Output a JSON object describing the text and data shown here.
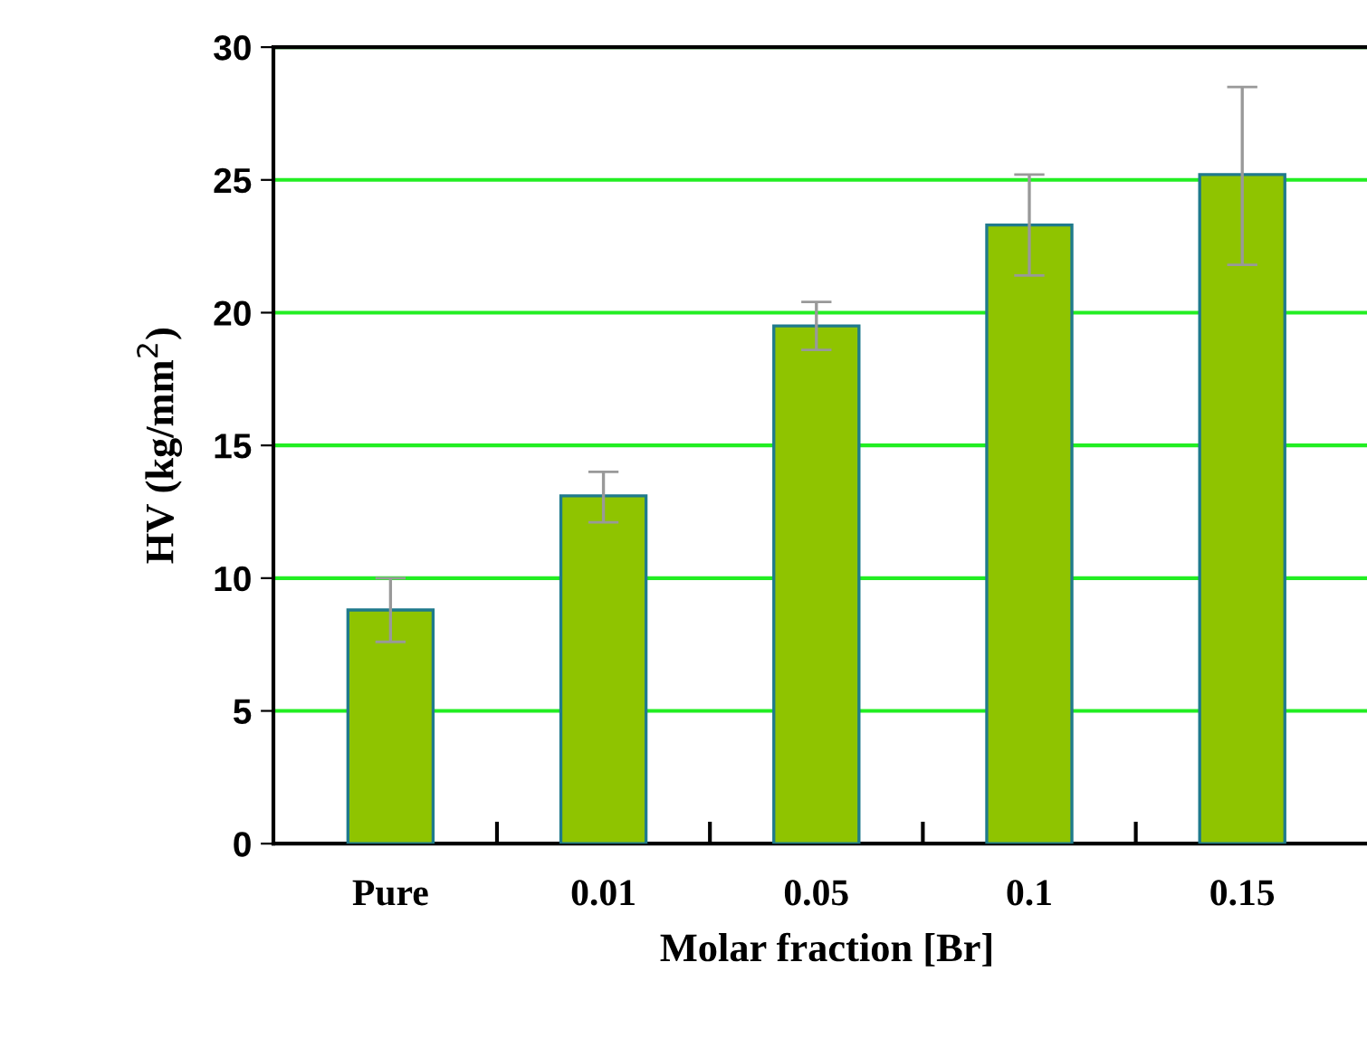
{
  "chart_data": {
    "type": "bar",
    "xlabel": "Molar fraction [Br]",
    "ylabel": "HV (kg/mm$^{2}$)",
    "categories": [
      "Pure",
      "0.01",
      "0.05",
      "0.1",
      "0.15"
    ],
    "values": [
      8.8,
      13.1,
      19.5,
      23.3,
      25.2
    ],
    "errors": [
      [
        7.6,
        10.0
      ],
      [
        12.1,
        14.0
      ],
      [
        18.6,
        20.4
      ],
      [
        21.4,
        25.2
      ],
      [
        21.8,
        28.5
      ]
    ],
    "color": "#8fc400",
    "ylim": [
      0,
      30
    ],
    "yticks": [
      0,
      5,
      10,
      15,
      20,
      25,
      30
    ],
    "grid": "y"
  }
}
